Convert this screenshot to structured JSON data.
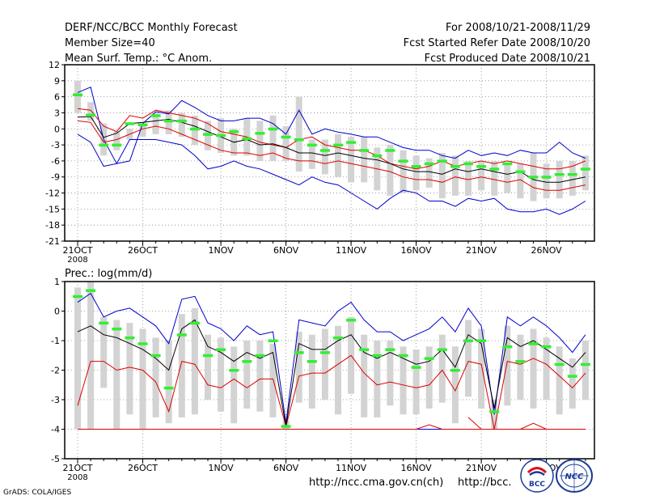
{
  "header": {
    "line1_left": "DERF/NCC/BCC Monthly Forecast",
    "line2_left": "Member Size=40",
    "line3_left": "Mean Surf. Temp.: °C Anom.",
    "line1_right": "For 2008/10/21-2008/11/29",
    "line2_right": "Fcst Started Refer Date 2008/10/20",
    "line3_right": "Fcst Produced Date 2008/10/21"
  },
  "footer": {
    "url_primary": "http://ncc.cma.gov.cn(ch)",
    "url_secondary": "http://bcc.",
    "grads_credit": "GrADS: COLA/IGES"
  },
  "logos": {
    "bcc": "BCC",
    "ncc": "NCC"
  },
  "colors": {
    "envelope": "#0000cc",
    "spread": "#dd0000",
    "mean": "#000000",
    "box": "#d3d3d3",
    "observed": "#33ee33",
    "grid": "#888888"
  },
  "chart_data": [
    {
      "type": "line",
      "title": "Mean Surf. Temp.: °C Anom.",
      "xlabel": "",
      "ylabel": "",
      "ylim": [
        -21,
        12
      ],
      "yticks": [
        12,
        9,
        6,
        3,
        0,
        -3,
        -6,
        -9,
        -12,
        -15,
        -18,
        -21
      ],
      "ytick_labels": [
        "12",
        "9",
        "6",
        "3",
        "0",
        "-3",
        "-6",
        "-9",
        "-12",
        "-15",
        "-18",
        "-21"
      ],
      "x_tick_days": [
        0,
        5,
        11,
        16,
        21,
        26,
        31,
        36
      ],
      "x_tick_labels": [
        "21OCT",
        "26OCT",
        "1NOV",
        "6NOV",
        "11NOV",
        "16NOV",
        "21NOV",
        "26NOV"
      ],
      "x_year_label": "2008",
      "days": 40,
      "series": [
        {
          "name": "max",
          "values": [
            6.8,
            7.8,
            -2.0,
            -6.5,
            -6.0,
            1.0,
            3.2,
            2.8,
            5.3,
            4.0,
            2.5,
            1.5,
            1.5,
            2.0,
            2.0,
            1.0,
            -1.0,
            3.5,
            -1.0,
            0.0,
            -0.6,
            -1.0,
            -1.5,
            -1.5,
            -2.5,
            -3.5,
            -4.0,
            -4.0,
            -5.0,
            -5.5,
            -4.0,
            -5.0,
            -4.5,
            -5.0,
            -4.0,
            -4.5,
            -4.5,
            -2.5,
            -4.5,
            -5.5
          ]
        },
        {
          "name": "upper_spread",
          "values": [
            3.8,
            3.5,
            0.5,
            -0.5,
            2.5,
            2.0,
            3.5,
            3.0,
            2.5,
            2.0,
            1.0,
            -0.5,
            -1.0,
            -1.5,
            -2.5,
            -3.0,
            -3.5,
            -2.0,
            -1.5,
            -3.0,
            -3.5,
            -4.0,
            -4.0,
            -5.0,
            -6.5,
            -7.0,
            -7.5,
            -7.0,
            -6.0,
            -7.0,
            -6.5,
            -6.0,
            -6.5,
            -6.0,
            -6.5,
            -7.0,
            -7.5,
            -7.5,
            -7.0,
            -6.0
          ]
        },
        {
          "name": "mean",
          "values": [
            2.2,
            2.3,
            -1.6,
            -0.8,
            1.0,
            1.2,
            1.5,
            1.8,
            1.2,
            0.5,
            -0.5,
            -1.5,
            -2.5,
            -2.0,
            -3.0,
            -2.8,
            -3.5,
            -4.5,
            -4.5,
            -5.0,
            -4.5,
            -5.0,
            -5.5,
            -5.8,
            -6.5,
            -7.5,
            -8.0,
            -8.0,
            -8.5,
            -7.5,
            -8.0,
            -7.5,
            -8.0,
            -8.5,
            -8.0,
            -9.5,
            -10.0,
            -10.0,
            -9.5,
            -9.0
          ]
        },
        {
          "name": "lower_spread",
          "values": [
            1.5,
            1.2,
            -2.5,
            -2.0,
            -1.0,
            0.0,
            0.5,
            0.0,
            -1.0,
            -2.0,
            -3.0,
            -4.0,
            -4.5,
            -4.5,
            -5.0,
            -4.5,
            -5.5,
            -6.0,
            -6.0,
            -6.5,
            -6.0,
            -6.5,
            -7.0,
            -7.5,
            -8.0,
            -9.0,
            -9.5,
            -9.5,
            -10.0,
            -9.0,
            -9.5,
            -9.0,
            -9.5,
            -10.0,
            -9.5,
            -11.0,
            -11.5,
            -11.5,
            -11.0,
            -10.5
          ]
        },
        {
          "name": "min",
          "values": [
            -1.0,
            -2.5,
            -7.0,
            -6.5,
            -2.0,
            -2.0,
            -2.0,
            -2.5,
            -3.0,
            -5.0,
            -7.5,
            -7.0,
            -6.0,
            -7.0,
            -7.5,
            -8.5,
            -9.5,
            -10.5,
            -9.0,
            -10.0,
            -10.5,
            -12.0,
            -13.5,
            -15.0,
            -13.0,
            -11.5,
            -12.0,
            -13.5,
            -13.5,
            -14.5,
            -13.0,
            -13.5,
            -13.0,
            -15.0,
            -15.5,
            -15.5,
            -15.0,
            -16.0,
            -15.0,
            -13.5
          ]
        },
        {
          "name": "box_top",
          "values": [
            9.0,
            5.0,
            1.0,
            -0.5,
            0.0,
            0.5,
            3.0,
            3.5,
            3.0,
            2.5,
            1.5,
            2.0,
            0.0,
            2.0,
            1.5,
            2.5,
            0.5,
            6.0,
            -2.0,
            -2.0,
            -1.0,
            -1.5,
            -1.5,
            -3.5,
            -3.0,
            -4.0,
            -5.0,
            -5.5,
            -4.5,
            -5.0,
            -6.0,
            -6.0,
            -6.0,
            -6.5,
            -6.5,
            -4.5,
            -6.5,
            -6.0,
            -6.0,
            -5.0
          ]
        },
        {
          "name": "box_bottom",
          "values": [
            3.0,
            1.5,
            -5.0,
            -4.0,
            -2.0,
            -1.5,
            -1.0,
            -1.0,
            -1.5,
            -3.0,
            -4.0,
            -4.5,
            -5.0,
            -5.0,
            -6.0,
            -6.0,
            -6.0,
            -8.0,
            -7.5,
            -8.5,
            -9.0,
            -10.0,
            -10.0,
            -11.5,
            -12.5,
            -12.0,
            -11.5,
            -11.0,
            -13.0,
            -12.5,
            -12.5,
            -11.5,
            -12.5,
            -12.0,
            -13.0,
            -13.5,
            -13.0,
            -13.0,
            -12.5,
            -11.5
          ]
        },
        {
          "name": "observed",
          "values": [
            6.4,
            2.6,
            -3.0,
            -3.0,
            1.0,
            0.8,
            2.5,
            1.5,
            1.5,
            0.0,
            -1.0,
            -1.2,
            -0.5,
            -1.8,
            -0.8,
            0.0,
            -1.5,
            -2.0,
            -3.0,
            -4.0,
            -3.0,
            -2.5,
            -4.0,
            -5.0,
            -4.0,
            -6.0,
            -7.0,
            -6.5,
            -6.0,
            -7.0,
            -6.5,
            -7.0,
            -7.5,
            -6.5,
            -8.0,
            -9.0,
            -9.0,
            -8.5,
            -8.5,
            -7.5
          ]
        }
      ]
    },
    {
      "type": "line",
      "title": "Prec.: log(mm/d)",
      "xlabel": "",
      "ylabel": "",
      "ylim": [
        -5,
        1
      ],
      "yticks": [
        1,
        0,
        -1,
        -2,
        -3,
        -4,
        -5
      ],
      "ytick_labels": [
        "1",
        "0",
        "-1",
        "-2",
        "-3",
        "-4",
        "-5"
      ],
      "x_tick_days": [
        0,
        5,
        11,
        16,
        21,
        26,
        31,
        36
      ],
      "x_tick_labels": [
        "21OCT",
        "26OCT",
        "1NOV",
        "6NOV",
        "11NOV",
        "16NOV",
        "21NOV",
        "26NOV"
      ],
      "x_year_label": "2008",
      "days": 40,
      "series": [
        {
          "name": "max",
          "values": [
            0.3,
            0.6,
            -0.2,
            0.0,
            0.1,
            -0.2,
            -0.5,
            -1.1,
            0.4,
            0.5,
            -0.4,
            -0.6,
            -1.0,
            -0.5,
            -0.8,
            -0.7,
            -3.8,
            -0.3,
            -0.4,
            -0.5,
            0.0,
            0.3,
            -0.3,
            -0.7,
            -0.7,
            -1.0,
            -0.8,
            -0.6,
            -0.2,
            -0.7,
            0.1,
            -0.5,
            -3.5,
            -0.2,
            -0.5,
            -0.2,
            -0.5,
            -0.9,
            -1.4,
            -0.8
          ]
        },
        {
          "name": "mean",
          "values": [
            -0.7,
            -0.5,
            -0.8,
            -0.9,
            -1.1,
            -1.3,
            -1.6,
            -2.0,
            -0.6,
            -0.3,
            -1.2,
            -1.4,
            -1.7,
            -1.4,
            -1.6,
            -1.4,
            -3.9,
            -1.1,
            -1.3,
            -1.3,
            -1.0,
            -0.8,
            -1.4,
            -1.6,
            -1.4,
            -1.6,
            -1.8,
            -1.7,
            -1.3,
            -1.9,
            -0.8,
            -1.1,
            -3.3,
            -0.9,
            -1.2,
            -1.0,
            -1.3,
            -1.6,
            -1.9,
            -1.4
          ]
        },
        {
          "name": "lower_spread",
          "values": [
            -3.2,
            -1.7,
            -1.7,
            -2.0,
            -1.9,
            -2.0,
            -2.4,
            -3.4,
            -1.7,
            -1.8,
            -2.5,
            -2.6,
            -2.3,
            -2.6,
            -2.3,
            -2.3,
            -3.9,
            -2.2,
            -2.1,
            -2.1,
            -1.8,
            -1.5,
            -2.1,
            -2.5,
            -2.4,
            -2.5,
            -2.6,
            -2.5,
            -2.0,
            -2.7,
            -1.7,
            -1.8,
            -4.0,
            -1.7,
            -1.8,
            -1.6,
            -1.8,
            -2.2,
            -2.6,
            -2.1
          ]
        },
        {
          "name": "min",
          "values": [
            -4.0,
            -4.0,
            -4.0,
            -4.0,
            -4.0,
            -4.0,
            -4.0,
            -4.0,
            -4.0,
            -4.0,
            -4.0,
            -4.0,
            -4.0,
            -4.0,
            -4.0,
            -4.0,
            -4.0,
            -4.0,
            -4.0,
            -4.0,
            -4.0,
            -4.0,
            -4.0,
            -4.0,
            -4.0,
            -4.0,
            -4.0,
            -4.0,
            -4.0,
            -4.0,
            -4.0,
            -4.0,
            -4.0,
            -4.0,
            -4.0,
            -4.0,
            -4.0,
            -4.0,
            -4.0,
            -4.0
          ]
        },
        {
          "name": "box_top",
          "values": [
            0.8,
            1.0,
            -0.2,
            -0.3,
            -0.4,
            -0.6,
            -0.9,
            -1.0,
            -0.1,
            0.1,
            -0.8,
            -0.9,
            -1.2,
            -1.0,
            -1.0,
            -1.1,
            -3.7,
            -0.7,
            -0.8,
            -0.6,
            -0.5,
            -0.2,
            -0.8,
            -1.0,
            -1.0,
            -1.2,
            -1.3,
            -1.2,
            -0.8,
            -1.2,
            -0.3,
            -0.6,
            -3.0,
            -0.5,
            -0.8,
            -0.6,
            -0.9,
            -1.2,
            -1.6,
            -1.0
          ]
        },
        {
          "name": "box_bottom",
          "values": [
            -4.0,
            -4.0,
            -2.6,
            -4.0,
            -3.5,
            -4.0,
            -3.6,
            -3.8,
            -3.6,
            -3.5,
            -3.0,
            -3.4,
            -3.8,
            -3.3,
            -3.4,
            -3.6,
            -4.0,
            -3.1,
            -3.3,
            -3.0,
            -3.5,
            -2.8,
            -3.6,
            -3.6,
            -3.2,
            -3.5,
            -3.5,
            -3.3,
            -3.1,
            -3.8,
            -2.9,
            -3.3,
            -4.0,
            -3.2,
            -3.0,
            -3.3,
            -3.0,
            -3.5,
            -3.3,
            -3.0
          ]
        },
        {
          "name": "observed",
          "values": [
            0.5,
            0.7,
            -0.4,
            -0.6,
            -0.9,
            -1.1,
            -1.5,
            -2.6,
            -0.8,
            -0.4,
            -1.5,
            -1.3,
            -2.0,
            -1.7,
            -1.5,
            -1.0,
            -3.9,
            -1.4,
            -1.7,
            -1.4,
            -0.9,
            -0.3,
            -1.3,
            -1.5,
            -1.3,
            -1.5,
            -1.9,
            -1.6,
            -1.3,
            -2.0,
            -1.0,
            -1.0,
            -3.4,
            -1.2,
            -1.7,
            -1.1,
            -1.2,
            -1.8,
            -2.2,
            -1.8
          ]
        },
        {
          "name": "min_extra_blue",
          "values": [
            null,
            null,
            null,
            null,
            null,
            null,
            null,
            null,
            null,
            null,
            null,
            null,
            null,
            null,
            null,
            null,
            null,
            null,
            null,
            null,
            null,
            null,
            null,
            null,
            null,
            null,
            -4.0,
            -4.0,
            -4.0,
            null,
            null,
            -4.0,
            -4.0,
            -4.0,
            null,
            null,
            null,
            null,
            null,
            null
          ]
        },
        {
          "name": "min_extra_red",
          "values": [
            null,
            null,
            null,
            null,
            null,
            null,
            null,
            null,
            null,
            null,
            null,
            null,
            null,
            null,
            null,
            null,
            null,
            null,
            null,
            null,
            null,
            null,
            null,
            null,
            null,
            null,
            -4.0,
            -3.85,
            -4.0,
            null,
            -3.6,
            -4.0,
            -4.0,
            -4.0,
            -4.0,
            -3.8,
            -4.0,
            -4.0,
            -4.0,
            null
          ]
        }
      ]
    }
  ]
}
